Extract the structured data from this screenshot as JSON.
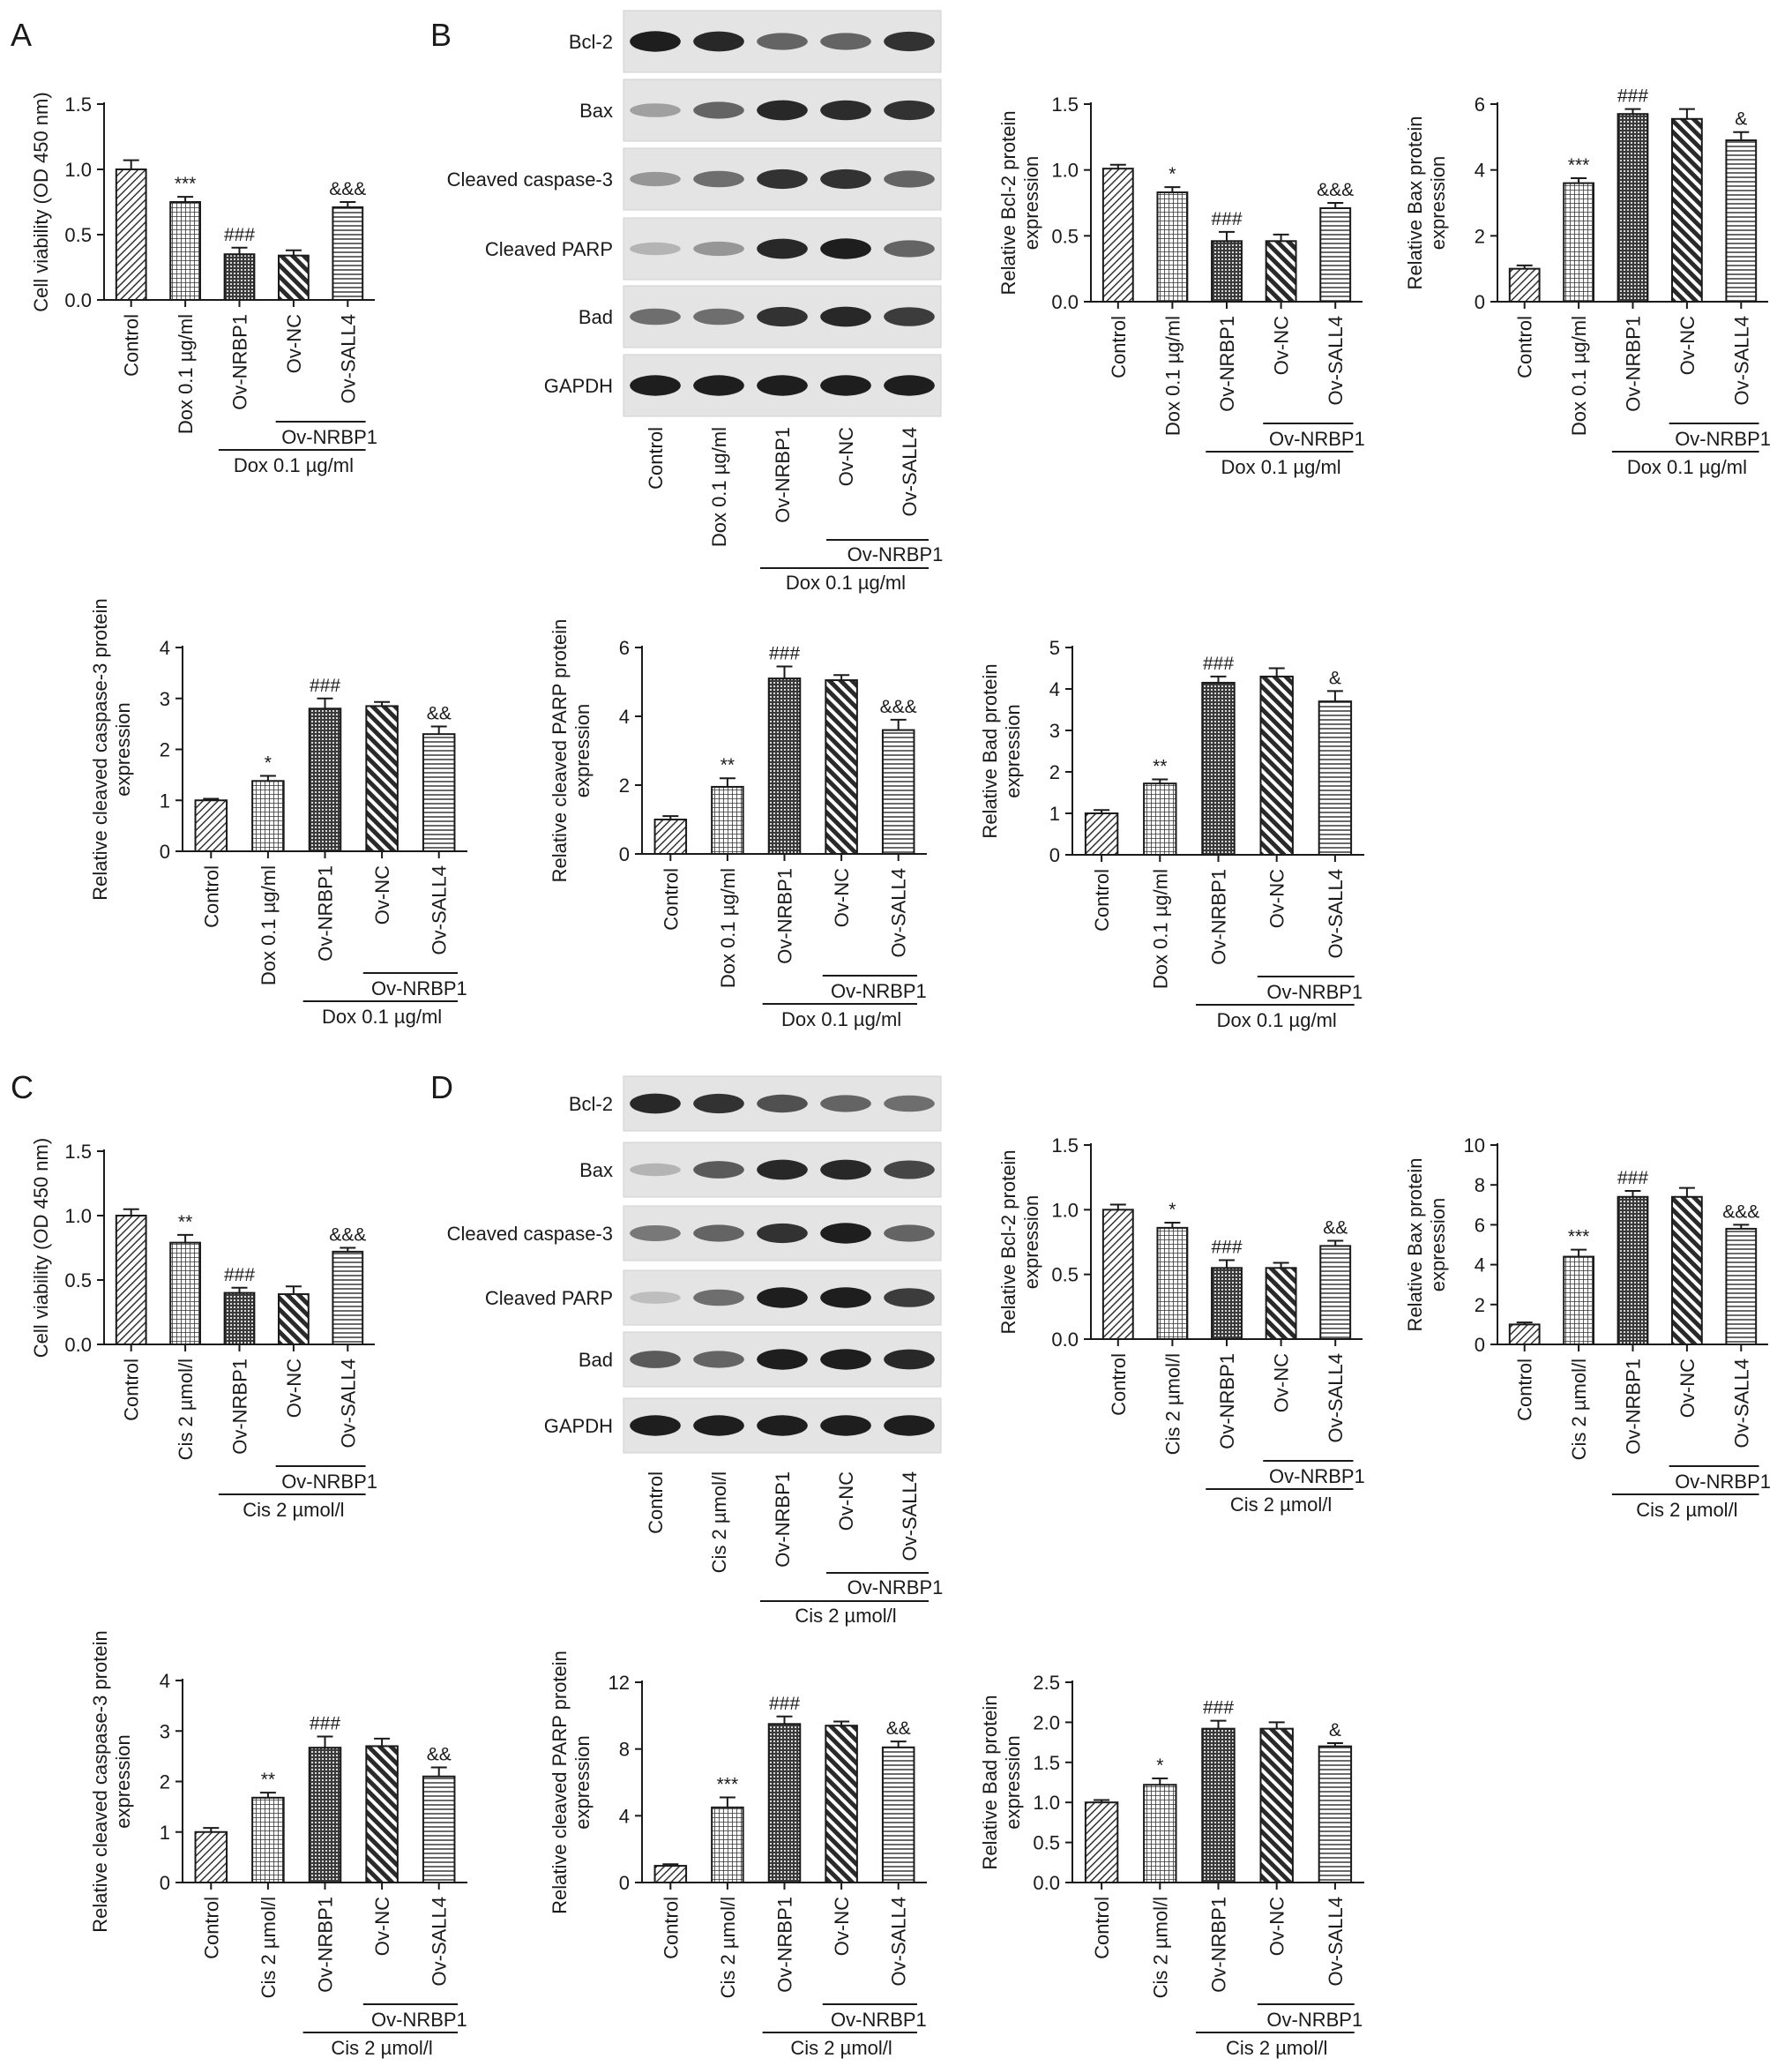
{
  "panel_letters": [
    "A",
    "B",
    "C",
    "D"
  ],
  "blot_groups": [
    "Control",
    "Dox 0.1 µg/ml",
    "Ov-NRBP1",
    "Ov-NC",
    "Ov-SALL4"
  ],
  "blot_groups_cis": [
    "Control",
    "Cis 2 µmol/l",
    "Ov-NRBP1",
    "Ov-NC",
    "Ov-SALL4"
  ],
  "blot_bands": [
    "Bcl-2",
    "Bax",
    "Cleaved caspase-3",
    "Cleaved PARP",
    "Bad",
    "GAPDH"
  ],
  "blot_sub": "Ov-NRBP1",
  "blot_dox": "Dox 0.1 µg/ml",
  "blot_cis": "Cis 2 µmol/l",
  "colors": {
    "bars": [
      "#9a9a9a",
      "#9a9a9a",
      "#6e6e6e",
      "#8a8a8a",
      "#b8b8b8"
    ],
    "ink": "#1a1a1a"
  },
  "chart_data": [
    {
      "type": "bar",
      "categories": [
        "Control",
        "Dox 0.1 µg/ml",
        "Ov-NRBP1",
        "Ov-NC",
        "Ov-SALL4"
      ],
      "values": [
        1.0,
        0.75,
        0.35,
        0.34,
        0.71
      ],
      "errors": [
        0.07,
        0.04,
        0.05,
        0.04,
        0.04
      ],
      "ylabel": "Cell viability (OD 450 nm)",
      "ylim": [
        0,
        1.5
      ],
      "yticks": [
        "0.0",
        "0.5",
        "1.0",
        "1.5"
      ],
      "sig": [
        "",
        "***",
        "###",
        "",
        "&&&"
      ],
      "sublabel": "Ov-NRBP1",
      "grouplabel": "Dox 0.1 µg/ml"
    },
    {
      "type": "bar",
      "categories": [
        "Control",
        "Dox 0.1 µg/ml",
        "Ov-NRBP1",
        "Ov-NC",
        "Ov-SALL4"
      ],
      "values": [
        1.01,
        0.83,
        0.46,
        0.46,
        0.71
      ],
      "errors": [
        0.03,
        0.04,
        0.07,
        0.05,
        0.04
      ],
      "ylabel": "Relative Bcl-2 protein expression",
      "ylim": [
        0,
        1.5
      ],
      "yticks": [
        "0.0",
        "0.5",
        "1.0",
        "1.5"
      ],
      "sig": [
        "",
        "*",
        "###",
        "",
        "&&&"
      ],
      "sublabel": "Ov-NRBP1",
      "grouplabel": "Dox 0.1 µg/ml"
    },
    {
      "type": "bar",
      "categories": [
        "Control",
        "Dox 0.1 µg/ml",
        "Ov-NRBP1",
        "Ov-NC",
        "Ov-SALL4"
      ],
      "values": [
        1.0,
        3.6,
        5.7,
        5.55,
        4.9
      ],
      "errors": [
        0.1,
        0.15,
        0.15,
        0.3,
        0.25
      ],
      "ylabel": "Relative Bax protein expression",
      "ylim": [
        0,
        6
      ],
      "yticks": [
        "0",
        "2",
        "4",
        "6"
      ],
      "sig": [
        "",
        "***",
        "###",
        "",
        "&"
      ],
      "sublabel": "Ov-NRBP1",
      "grouplabel": "Dox 0.1 µg/ml"
    },
    {
      "type": "bar",
      "categories": [
        "Control",
        "Dox 0.1 µg/ml",
        "Ov-NRBP1",
        "Ov-NC",
        "Ov-SALL4"
      ],
      "values": [
        1.0,
        1.38,
        2.8,
        2.85,
        2.3
      ],
      "errors": [
        0.03,
        0.1,
        0.2,
        0.08,
        0.15
      ],
      "ylabel": "Relative cleaved caspase-3 protein expression",
      "ylim": [
        0,
        4
      ],
      "yticks": [
        "0",
        "1",
        "2",
        "3",
        "4"
      ],
      "sig": [
        "",
        "*",
        "###",
        "",
        "&&"
      ],
      "sublabel": "Ov-NRBP1",
      "grouplabel": "Dox 0.1 µg/ml"
    },
    {
      "type": "bar",
      "categories": [
        "Control",
        "Dox 0.1 µg/ml",
        "Ov-NRBP1",
        "Ov-NC",
        "Ov-SALL4"
      ],
      "values": [
        1.0,
        1.95,
        5.1,
        5.05,
        3.6
      ],
      "errors": [
        0.1,
        0.25,
        0.35,
        0.15,
        0.3
      ],
      "ylabel": "Relative cleaved PARP protein expression",
      "ylim": [
        0,
        6
      ],
      "yticks": [
        "0",
        "2",
        "4",
        "6"
      ],
      "sig": [
        "",
        "**",
        "###",
        "",
        "&&&"
      ],
      "sublabel": "Ov-NRBP1",
      "grouplabel": "Dox 0.1 µg/ml"
    },
    {
      "type": "bar",
      "categories": [
        "Control",
        "Dox 0.1 µg/ml",
        "Ov-NRBP1",
        "Ov-NC",
        "Ov-SALL4"
      ],
      "values": [
        1.0,
        1.72,
        4.15,
        4.3,
        3.7
      ],
      "errors": [
        0.08,
        0.1,
        0.15,
        0.2,
        0.25
      ],
      "ylabel": "Relative Bad protein expression",
      "ylim": [
        0,
        5
      ],
      "yticks": [
        "0",
        "1",
        "2",
        "3",
        "4",
        "5"
      ],
      "sig": [
        "",
        "**",
        "###",
        "",
        "&"
      ],
      "sublabel": "Ov-NRBP1",
      "grouplabel": "Dox 0.1 µg/ml"
    },
    {
      "type": "bar",
      "categories": [
        "Control",
        "Cis 2 µmol/l",
        "Ov-NRBP1",
        "Ov-NC",
        "Ov-SALL4"
      ],
      "values": [
        1.0,
        0.79,
        0.4,
        0.39,
        0.72
      ],
      "errors": [
        0.05,
        0.06,
        0.04,
        0.06,
        0.03
      ],
      "ylabel": "Cell viability (OD 450 nm)",
      "ylim": [
        0,
        1.5
      ],
      "yticks": [
        "0.0",
        "0.5",
        "1.0",
        "1.5"
      ],
      "sig": [
        "",
        "**",
        "###",
        "",
        "&&&"
      ],
      "sublabel": "Ov-NRBP1",
      "grouplabel": "Cis 2 µmol/l"
    },
    {
      "type": "bar",
      "categories": [
        "Control",
        "Cis 2 µmol/l",
        "Ov-NRBP1",
        "Ov-NC",
        "Ov-SALL4"
      ],
      "values": [
        1.0,
        0.86,
        0.55,
        0.55,
        0.72
      ],
      "errors": [
        0.04,
        0.04,
        0.06,
        0.04,
        0.04
      ],
      "ylabel": "Relative Bcl-2 protein expression",
      "ylim": [
        0,
        1.5
      ],
      "yticks": [
        "0.0",
        "0.5",
        "1.0",
        "1.5"
      ],
      "sig": [
        "",
        "*",
        "###",
        "",
        "&&"
      ],
      "sublabel": "Ov-NRBP1",
      "grouplabel": "Cis 2 µmol/l"
    },
    {
      "type": "bar",
      "categories": [
        "Control",
        "Cis 2 µmol/l",
        "Ov-NRBP1",
        "Ov-NC",
        "Ov-SALL4"
      ],
      "values": [
        1.0,
        4.4,
        7.4,
        7.4,
        5.8
      ],
      "errors": [
        0.1,
        0.35,
        0.3,
        0.45,
        0.2
      ],
      "ylabel": "Relative Bax protein expression",
      "ylim": [
        0,
        10
      ],
      "yticks": [
        "0",
        "2",
        "4",
        "6",
        "8",
        "10"
      ],
      "sig": [
        "",
        "***",
        "###",
        "",
        "&&&"
      ],
      "sublabel": "Ov-NRBP1",
      "grouplabel": "Cis 2 µmol/l"
    },
    {
      "type": "bar",
      "categories": [
        "Control",
        "Cis 2 µmol/l",
        "Ov-NRBP1",
        "Ov-NC",
        "Ov-SALL4"
      ],
      "values": [
        1.0,
        1.68,
        2.67,
        2.7,
        2.1
      ],
      "errors": [
        0.08,
        0.1,
        0.22,
        0.15,
        0.18
      ],
      "ylabel": "Relative cleaved caspase-3 protein expression",
      "ylim": [
        0,
        4
      ],
      "yticks": [
        "0",
        "1",
        "2",
        "3",
        "4"
      ],
      "sig": [
        "",
        "**",
        "###",
        "",
        "&&"
      ],
      "sublabel": "Ov-NRBP1",
      "grouplabel": "Cis 2 µmol/l"
    },
    {
      "type": "bar",
      "categories": [
        "Control",
        "Cis 2 µmol/l",
        "Ov-NRBP1",
        "Ov-NC",
        "Ov-SALL4"
      ],
      "values": [
        1.0,
        4.5,
        9.5,
        9.4,
        8.1
      ],
      "errors": [
        0.1,
        0.6,
        0.45,
        0.25,
        0.35
      ],
      "ylabel": "Relative cleaved PARP protein expression",
      "ylim": [
        0,
        12
      ],
      "yticks": [
        "0",
        "4",
        "8",
        "12"
      ],
      "sig": [
        "",
        "***",
        "###",
        "",
        "&&"
      ],
      "sublabel": "Ov-NRBP1",
      "grouplabel": "Cis 2 µmol/l"
    },
    {
      "type": "bar",
      "categories": [
        "Control",
        "Cis 2 µmol/l",
        "Ov-NRBP1",
        "Ov-NC",
        "Ov-SALL4"
      ],
      "values": [
        1.0,
        1.22,
        1.92,
        1.92,
        1.7
      ],
      "errors": [
        0.03,
        0.08,
        0.1,
        0.08,
        0.04
      ],
      "ylabel": "Relative Bad protein expression",
      "ylim": [
        0,
        2.5
      ],
      "yticks": [
        "0.0",
        "0.5",
        "1.0",
        "1.5",
        "2.0",
        "2.5"
      ],
      "sig": [
        "",
        "*",
        "###",
        "",
        "&"
      ],
      "sublabel": "Ov-NRBP1",
      "grouplabel": "Cis 2 µmol/l"
    }
  ]
}
